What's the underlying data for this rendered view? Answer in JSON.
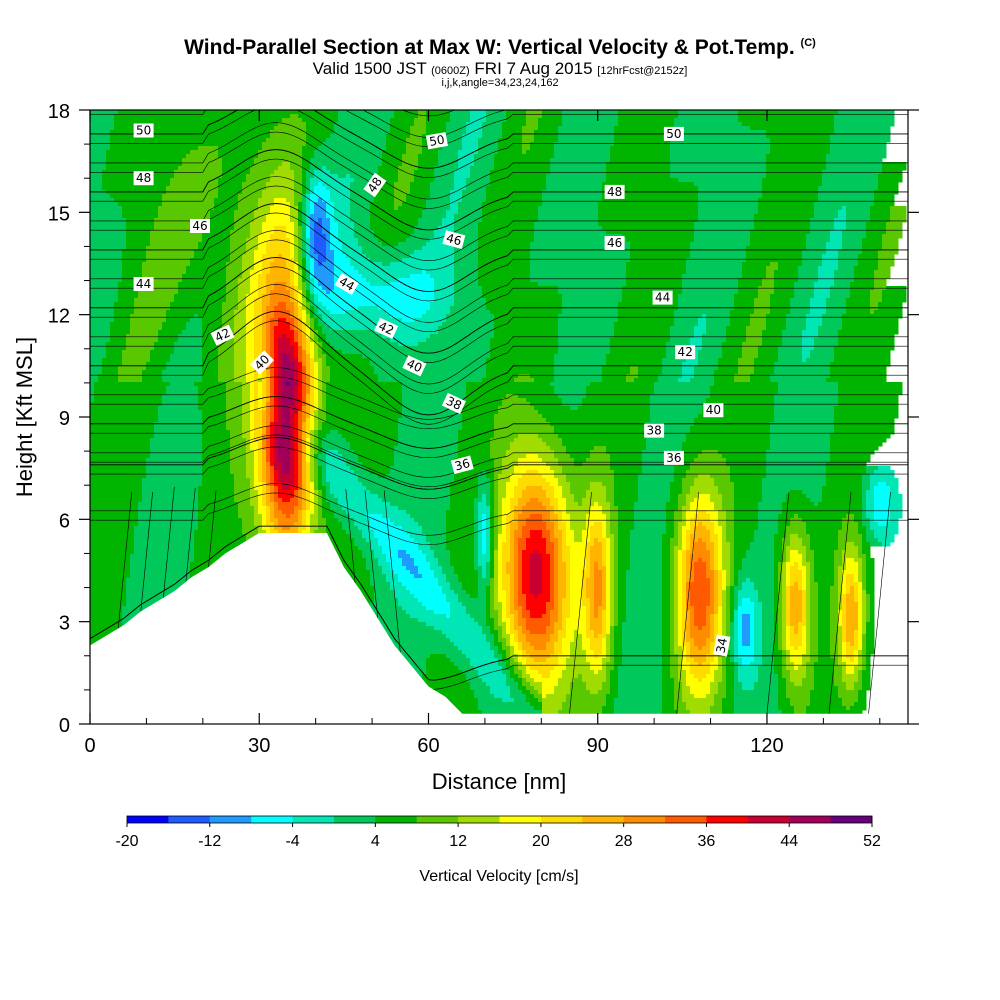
{
  "titles": {
    "main": "Wind-Parallel Section at Max W: Vertical Velocity & Pot.Temp.",
    "copyright": "(C)",
    "valid_prefix": "Valid 1500 JST",
    "valid_utc": "(0600Z)",
    "valid_date": "FRI 7 Aug 2015",
    "forecast": "[12hrFcst@2152z]",
    "indices": "i,j,k,angle=34,23,24,162"
  },
  "chart_data": {
    "type": "heatmap",
    "title": "Wind-Parallel Section at Max W: Vertical Velocity & Pot.Temp.",
    "xlabel": "Distance [nm]",
    "ylabel": "Height [Kft MSL]",
    "xlim": [
      0,
      145
    ],
    "ylim": [
      0,
      18
    ],
    "x_ticks": [
      0,
      30,
      60,
      90,
      120
    ],
    "y_ticks": [
      0,
      3,
      6,
      9,
      12,
      15,
      18
    ],
    "colorbar": {
      "title": "Vertical Velocity [cm/s]",
      "tick_labels": [
        "-20",
        "-12",
        "-4",
        "4",
        "12",
        "20",
        "28",
        "36",
        "44",
        "52"
      ],
      "min": -20,
      "step": 4,
      "colors": [
        "#0000ff",
        "#1e5cff",
        "#1f9bff",
        "#00ffff",
        "#00e6b4",
        "#00c85a",
        "#00b400",
        "#5ac800",
        "#a0dc00",
        "#ffff00",
        "#ffdc00",
        "#ffb400",
        "#ff8c00",
        "#ff5a00",
        "#ff0000",
        "#c80032",
        "#a0005a",
        "#640078"
      ]
    },
    "terrain": [
      [
        0,
        2.3
      ],
      [
        3,
        2.6
      ],
      [
        6,
        2.9
      ],
      [
        9,
        3.3
      ],
      [
        12,
        3.6
      ],
      [
        15,
        3.9
      ],
      [
        18,
        4.3
      ],
      [
        21,
        4.6
      ],
      [
        24,
        5.0
      ],
      [
        27,
        5.3
      ],
      [
        30,
        5.6
      ],
      [
        42,
        5.6
      ],
      [
        45,
        4.6
      ],
      [
        48,
        3.9
      ],
      [
        51,
        3.1
      ],
      [
        54,
        2.3
      ],
      [
        57,
        1.7
      ],
      [
        60,
        1.1
      ],
      [
        63,
        0.8
      ],
      [
        66,
        0.3
      ],
      [
        145,
        0.3
      ]
    ],
    "w_features": [
      {
        "x": 35,
        "y": 9.0,
        "sx": 3.4,
        "sy": 2.9,
        "w": 50,
        "note": "updraft core"
      },
      {
        "x": 79,
        "y": 4.4,
        "sx": 4.3,
        "sy": 2.4,
        "w": 40
      },
      {
        "x": 90,
        "y": 3.9,
        "sx": 1.8,
        "sy": 1.9,
        "w": 22
      },
      {
        "x": 108,
        "y": 3.9,
        "sx": 3.0,
        "sy": 2.1,
        "w": 30
      },
      {
        "x": 125,
        "y": 3.5,
        "sx": 1.9,
        "sy": 1.6,
        "w": 24
      },
      {
        "x": 135,
        "y": 3.1,
        "sx": 1.6,
        "sy": 1.4,
        "w": 22
      },
      {
        "x": 70,
        "y": 5.5,
        "sx": 1.1,
        "sy": 1.2,
        "w": -16
      },
      {
        "x": 116,
        "y": 2.8,
        "sx": 1.6,
        "sy": 1.0,
        "w": -14
      },
      {
        "x": 50,
        "y": 12.6,
        "sx": 9.0,
        "sy": 1.0,
        "w": -12
      },
      {
        "x": 40,
        "y": 14.5,
        "sx": 2.0,
        "sy": 1.3,
        "w": -18
      },
      {
        "x": 140,
        "y": 6.5,
        "sx": 2.0,
        "sy": 0.8,
        "w": -12
      },
      {
        "x": 30,
        "y": 14.0,
        "sx": 7.0,
        "sy": 3.5,
        "w": 5
      },
      {
        "x": 20,
        "y": 14.0,
        "sx": 8.0,
        "sy": 3.0,
        "w": 4
      }
    ],
    "theta_levels": [
      34,
      36,
      38,
      40,
      42,
      44,
      46,
      48,
      50
    ],
    "theta_labels": [
      {
        "text": "50",
        "x": 9.5,
        "y": 17.4,
        "angle": 0
      },
      {
        "text": "48",
        "x": 9.5,
        "y": 16.0,
        "angle": 0
      },
      {
        "text": "46",
        "x": 19.5,
        "y": 14.6,
        "angle": 0
      },
      {
        "text": "44",
        "x": 9.5,
        "y": 12.9,
        "angle": 0
      },
      {
        "text": "42",
        "x": 23.5,
        "y": 11.4,
        "angle": -25
      },
      {
        "text": "40",
        "x": 30.5,
        "y": 10.6,
        "angle": -45
      },
      {
        "text": "44",
        "x": 45.5,
        "y": 12.9,
        "angle": 30
      },
      {
        "text": "48",
        "x": 50.5,
        "y": 15.8,
        "angle": -55
      },
      {
        "text": "50",
        "x": 61.5,
        "y": 17.1,
        "angle": -10
      },
      {
        "text": "46",
        "x": 64.5,
        "y": 14.2,
        "angle": 15
      },
      {
        "text": "42",
        "x": 52.5,
        "y": 11.6,
        "angle": 25
      },
      {
        "text": "40",
        "x": 57.5,
        "y": 10.5,
        "angle": 25
      },
      {
        "text": "38",
        "x": 64.5,
        "y": 9.4,
        "angle": 25
      },
      {
        "text": "36",
        "x": 66.0,
        "y": 7.6,
        "angle": -15
      },
      {
        "text": "50",
        "x": 103.5,
        "y": 17.3,
        "angle": 0
      },
      {
        "text": "48",
        "x": 93.0,
        "y": 15.6,
        "angle": 0
      },
      {
        "text": "46",
        "x": 93.0,
        "y": 14.1,
        "angle": 0
      },
      {
        "text": "44",
        "x": 101.5,
        "y": 12.5,
        "angle": 0
      },
      {
        "text": "42",
        "x": 105.5,
        "y": 10.9,
        "angle": 0
      },
      {
        "text": "40",
        "x": 110.5,
        "y": 9.2,
        "angle": 0
      },
      {
        "text": "38",
        "x": 100.0,
        "y": 8.6,
        "angle": 0
      },
      {
        "text": "36",
        "x": 103.5,
        "y": 7.8,
        "angle": 0
      },
      {
        "text": "34",
        "x": 112.0,
        "y": 2.3,
        "angle": -80
      }
    ]
  }
}
